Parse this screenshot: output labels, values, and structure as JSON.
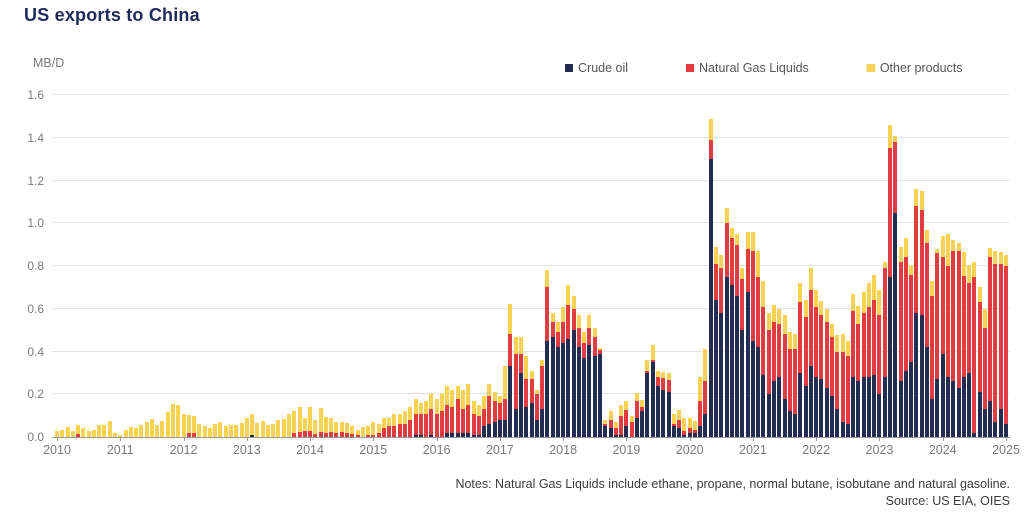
{
  "title": "US exports to China",
  "unit_label": "MB/D",
  "legend": [
    {
      "label": "Crude oil",
      "color": "#232d52"
    },
    {
      "label": "Natural Gas Liquids",
      "color": "#e03c42"
    },
    {
      "label": "Other products",
      "color": "#f8d254"
    }
  ],
  "notes_line": "Notes: Natural Gas Liquids include ethane, propane, normal butane, isobutane and natural gasoline.",
  "source_line": "Source: US EIA, OIES",
  "colors": {
    "crude": "#232d52",
    "ngl": "#e03c42",
    "other": "#f8d254",
    "title": "#1f2a5c",
    "gridline": "#e4e4e4",
    "axis_text": "#7a7a7a"
  },
  "chart_data": {
    "type": "bar",
    "stacked": true,
    "title": "US exports to China",
    "ylabel": "MB/D",
    "ylim": [
      0,
      1.6
    ],
    "y_ticks": [
      0.0,
      0.2,
      0.4,
      0.6,
      0.8,
      1.0,
      1.2,
      1.4,
      1.6
    ],
    "grid": true,
    "legend_position": "top",
    "x_unit": "month",
    "start_month": "2010-01",
    "end_month": "2025-01",
    "x_tick_labels": [
      "2010",
      "2011",
      "2012",
      "2013",
      "2014",
      "2015",
      "2016",
      "2017",
      "2018",
      "2019",
      "2020",
      "2021",
      "2022",
      "2023",
      "2024",
      "2025"
    ],
    "series": [
      {
        "name": "Crude oil",
        "color": "#232d52",
        "values": [
          0,
          0,
          0,
          0,
          0,
          0,
          0,
          0,
          0,
          0,
          0,
          0,
          0,
          0,
          0,
          0,
          0,
          0,
          0,
          0,
          0,
          0,
          0,
          0,
          0,
          0,
          0,
          0,
          0,
          0,
          0,
          0,
          0,
          0,
          0,
          0,
          0,
          0.01,
          0,
          0,
          0,
          0,
          0,
          0,
          0,
          0,
          0,
          0,
          0,
          0,
          0,
          0,
          0,
          0,
          0,
          0,
          0,
          0,
          0,
          0,
          0,
          0,
          0,
          0,
          0,
          0,
          0,
          0,
          0.01,
          0.01,
          0,
          0.01,
          0,
          0,
          0.02,
          0.02,
          0.02,
          0.02,
          0.02,
          0.01,
          0.01,
          0.05,
          0.06,
          0.07,
          0.08,
          0.08,
          0.33,
          0.13,
          0.3,
          0.14,
          0.16,
          0.08,
          0.13,
          0.45,
          0.47,
          0.42,
          0.44,
          0.46,
          0.5,
          0.42,
          0.37,
          0.43,
          0.38,
          0.39,
          0.05,
          0.04,
          0.01,
          0.01,
          0.05,
          0,
          0.09,
          0.12,
          0.3,
          0.35,
          0.24,
          0.22,
          0.21,
          0.05,
          0.04,
          0.01,
          0.02,
          0.02,
          0.05,
          0.11,
          1.3,
          0.64,
          0.58,
          0.75,
          0.71,
          0.66,
          0.5,
          0.68,
          0.45,
          0.42,
          0.29,
          0.2,
          0.26,
          0.28,
          0.18,
          0.12,
          0.11,
          0.3,
          0.24,
          0.33,
          0.28,
          0.27,
          0.23,
          0.19,
          0.13,
          0.07,
          0.06,
          0.28,
          0.26,
          0.28,
          0.28,
          0.29,
          0.2,
          0.28,
          0.75,
          1.05,
          0.26,
          0.31,
          0.35,
          0.58,
          0.57,
          0.42,
          0.18,
          0.27,
          0.39,
          0.28,
          0.26,
          0.23,
          0.28,
          0.3,
          0.02,
          0.21,
          0.13,
          0.17,
          0.07,
          0.13,
          0.06
        ]
      },
      {
        "name": "Natural Gas Liquids",
        "color": "#e03c42",
        "values": [
          0,
          0,
          0,
          0,
          0.015,
          0,
          0,
          0,
          0,
          0,
          0,
          0,
          0,
          0,
          0,
          0,
          0,
          0,
          0,
          0,
          0,
          0,
          0,
          0,
          0,
          0.02,
          0.02,
          0,
          0,
          0,
          0,
          0,
          0,
          0,
          0,
          0,
          0,
          0,
          0,
          0,
          0,
          0,
          0,
          0,
          0,
          0.02,
          0.025,
          0.03,
          0.03,
          0.015,
          0.025,
          0.02,
          0.025,
          0.02,
          0.025,
          0.02,
          0.015,
          0.01,
          0,
          0.01,
          0.01,
          0.02,
          0.04,
          0.05,
          0.05,
          0.06,
          0.06,
          0.08,
          0.1,
          0.1,
          0.11,
          0.12,
          0.11,
          0.12,
          0.13,
          0.12,
          0.16,
          0.11,
          0.13,
          0.1,
          0.09,
          0.08,
          0.13,
          0.1,
          0.08,
          0.1,
          0.15,
          0.26,
          0.09,
          0.13,
          0.11,
          0.12,
          0.2,
          0.25,
          0.07,
          0.07,
          0.1,
          0.16,
          0.1,
          0.09,
          0.07,
          0.08,
          0.09,
          0.015,
          0.01,
          0.04,
          0.03,
          0.09,
          0.075,
          0.07,
          0.08,
          0.02,
          0.01,
          0.01,
          0.04,
          0.055,
          0.055,
          0.01,
          0.04,
          0.02,
          0.02,
          0.015,
          0.12,
          0.15,
          0.09,
          0.17,
          0.21,
          0.25,
          0.22,
          0.24,
          0.24,
          0.2,
          0.42,
          0.33,
          0.32,
          0.3,
          0.28,
          0.25,
          0.3,
          0.29,
          0.3,
          0.33,
          0.32,
          0.36,
          0.33,
          0.3,
          0.31,
          0.28,
          0.27,
          0.33,
          0.32,
          0.31,
          0.27,
          0.3,
          0.33,
          0.35,
          0.37,
          0.51,
          0.6,
          0.33,
          0.56,
          0.53,
          0.41,
          0.5,
          0.49,
          0.49,
          0.48,
          0.59,
          0.45,
          0.52,
          0.61,
          0.64,
          0.475,
          0.42,
          0.73,
          0.42,
          0.38,
          0.67,
          0.74,
          0.68,
          0.74
        ]
      },
      {
        "name": "Other products",
        "color": "#f8d254",
        "values": [
          0.027,
          0.035,
          0.046,
          0.028,
          0.043,
          0.043,
          0.028,
          0.035,
          0.056,
          0.056,
          0.075,
          0.02,
          0.01,
          0.035,
          0.046,
          0.043,
          0.056,
          0.068,
          0.082,
          0.056,
          0.075,
          0.115,
          0.155,
          0.15,
          0.11,
          0.085,
          0.08,
          0.062,
          0.05,
          0.043,
          0.06,
          0.072,
          0.05,
          0.056,
          0.057,
          0.065,
          0.09,
          0.1,
          0.065,
          0.075,
          0.055,
          0.06,
          0.08,
          0.085,
          0.11,
          0.1,
          0.115,
          0.06,
          0.11,
          0.065,
          0.11,
          0.075,
          0.065,
          0.05,
          0.045,
          0.045,
          0.035,
          0.025,
          0.045,
          0.04,
          0.06,
          0.04,
          0.05,
          0.04,
          0.06,
          0.05,
          0.06,
          0.06,
          0.07,
          0.05,
          0.06,
          0.07,
          0.07,
          0.08,
          0.09,
          0.08,
          0.06,
          0.09,
          0.1,
          0.06,
          0.05,
          0.06,
          0.06,
          0.04,
          0.03,
          0.15,
          0.14,
          0.08,
          0.08,
          0.11,
          0.04,
          0.02,
          0.03,
          0.08,
          0.04,
          0.05,
          0.07,
          0.09,
          0.06,
          0.06,
          0.05,
          0.06,
          0.04,
          0.01,
          0.02,
          0.04,
          0.03,
          0.05,
          0.045,
          0.03,
          0.035,
          0.035,
          0.05,
          0.07,
          0.03,
          0.03,
          0.035,
          0.05,
          0.045,
          0.06,
          0.05,
          0.04,
          0.11,
          0.15,
          0.1,
          0.08,
          0.06,
          0.07,
          0.05,
          0.05,
          0.05,
          0.08,
          0.09,
          0.12,
          0.12,
          0.08,
          0.08,
          0.07,
          0.09,
          0.08,
          0.07,
          0.09,
          0.08,
          0.1,
          0.08,
          0.065,
          0.06,
          0.06,
          0.075,
          0.08,
          0.07,
          0.08,
          0.085,
          0.1,
          0.11,
          0.12,
          0.12,
          0.03,
          0.11,
          0.03,
          0.07,
          0.09,
          0.04,
          0.08,
          0.09,
          0.06,
          0.07,
          0.02,
          0.1,
          0.15,
          0.05,
          0.04,
          0.11,
          0.085,
          0.07,
          0.07,
          0.09,
          0.045,
          0.06,
          0.055,
          0.05
        ]
      }
    ]
  }
}
